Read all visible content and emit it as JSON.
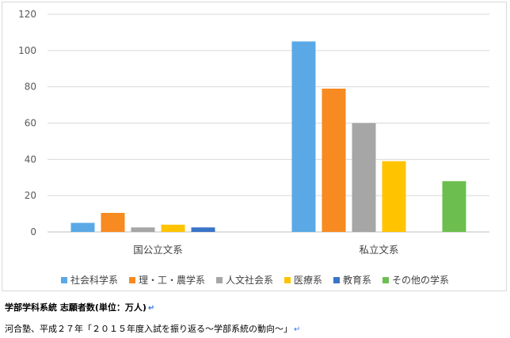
{
  "chart_data": {
    "type": "bar",
    "categories": [
      "国公立文系",
      "私立文系"
    ],
    "series": [
      {
        "name": "社会科学系",
        "color": "#5aa9e6",
        "values": [
          5,
          105
        ]
      },
      {
        "name": "理・工・農学系",
        "color": "#f78a20",
        "values": [
          10.5,
          79
        ]
      },
      {
        "name": "人文社会系",
        "color": "#a6a6a6",
        "values": [
          2.5,
          60
        ]
      },
      {
        "name": "医療系",
        "color": "#ffc300",
        "values": [
          4,
          39
        ]
      },
      {
        "name": "教育系",
        "color": "#3a74c9",
        "values": [
          2.5,
          null
        ]
      },
      {
        "name": "その他の学系",
        "color": "#6cbf4f",
        "values": [
          null,
          28
        ]
      }
    ],
    "ylim": [
      0,
      120
    ],
    "yticks": [
      0,
      20,
      40,
      60,
      80,
      100,
      120
    ],
    "grid": true,
    "legend": "bottom",
    "title": "",
    "xlabel": "",
    "ylabel": ""
  },
  "captions": {
    "line1": "学部学科系統 志願者数(単位：万人)",
    "line2": "河合塾、平成２７年「２０１５年度入試を振り返る〜学部系統の動向〜」",
    "return_mark": "↵"
  }
}
